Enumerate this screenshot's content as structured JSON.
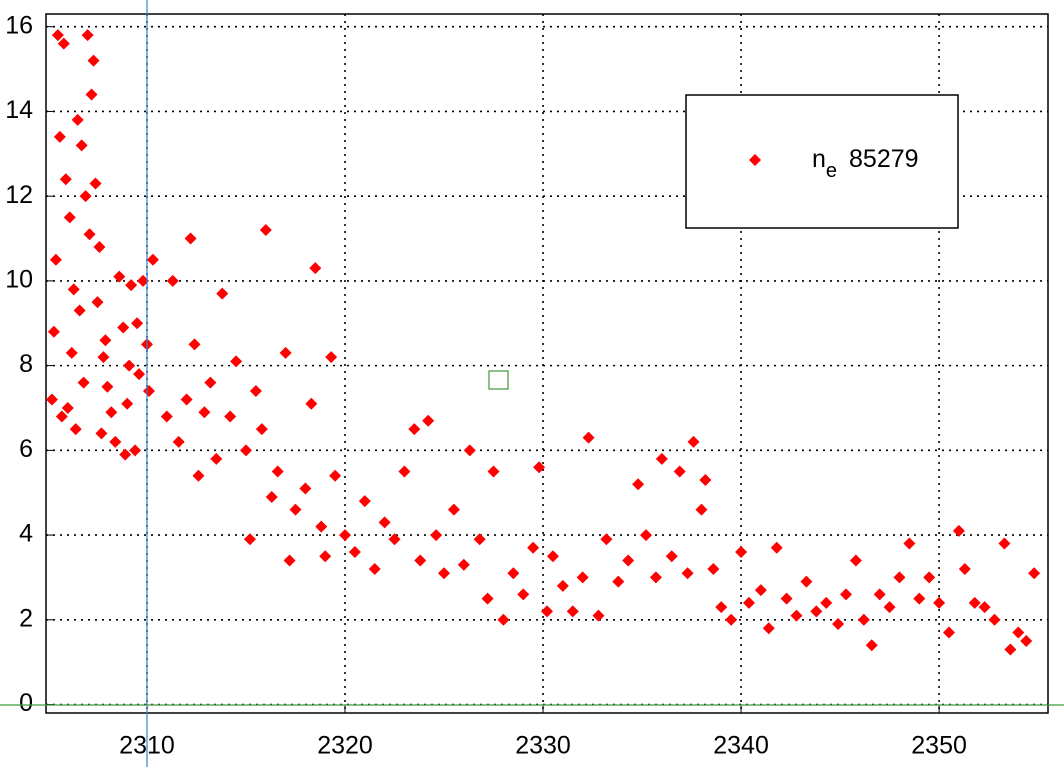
{
  "chart_data": {
    "type": "scatter",
    "series": [
      {
        "name": "n",
        "name_subscript": "e",
        "name_suffix": "85279",
        "color": "#ff0000",
        "x": [
          2305.2,
          2305.4,
          2305.5,
          2305.8,
          2305.6,
          2305.9,
          2306.1,
          2306.3,
          2306.2,
          2305.7,
          2306.5,
          2306.7,
          2306.9,
          2307.0,
          2307.2,
          2307.3,
          2307.1,
          2307.4,
          2307.5,
          2307.6,
          2307.8,
          2308.0,
          2308.2,
          2308.4,
          2308.6,
          2308.8,
          2309.0,
          2309.2,
          2309.4,
          2309.6,
          2309.8,
          2310.1,
          2310.3,
          2306.0,
          2306.4,
          2306.8,
          2307.7,
          2308.9,
          2305.3,
          2306.6,
          2307.9,
          2309.1,
          2309.5,
          2310.0,
          2311.0,
          2311.3,
          2311.6,
          2312.0,
          2312.2,
          2312.4,
          2312.6,
          2312.9,
          2313.2,
          2313.5,
          2313.8,
          2314.2,
          2314.5,
          2315.0,
          2315.2,
          2315.5,
          2315.8,
          2316.0,
          2316.3,
          2316.6,
          2317.0,
          2317.2,
          2317.5,
          2318.0,
          2318.3,
          2318.5,
          2318.8,
          2319.0,
          2319.3,
          2319.5,
          2320.0,
          2320.5,
          2321.0,
          2321.5,
          2322.0,
          2322.5,
          2323.0,
          2323.5,
          2323.8,
          2324.2,
          2324.6,
          2325.0,
          2325.5,
          2326.0,
          2326.3,
          2326.8,
          2327.2,
          2327.5,
          2328.0,
          2328.5,
          2329.0,
          2329.5,
          2329.8,
          2330.2,
          2330.5,
          2331.0,
          2331.5,
          2332.0,
          2332.3,
          2332.8,
          2333.2,
          2333.8,
          2334.3,
          2334.8,
          2335.2,
          2335.7,
          2336.0,
          2336.5,
          2336.9,
          2337.3,
          2337.6,
          2338.0,
          2338.2,
          2338.6,
          2339.0,
          2339.5,
          2340.0,
          2340.4,
          2341.0,
          2341.4,
          2341.8,
          2342.3,
          2342.8,
          2343.3,
          2343.8,
          2344.3,
          2344.9,
          2345.3,
          2345.8,
          2346.2,
          2346.6,
          2347.0,
          2347.5,
          2348.0,
          2348.5,
          2349.0,
          2349.5,
          2350.0,
          2350.5,
          2351.0,
          2351.3,
          2351.8,
          2352.3,
          2352.8,
          2353.3,
          2353.6,
          2354.0,
          2354.4,
          2354.8
        ],
        "values": [
          7.2,
          10.5,
          15.8,
          15.6,
          13.4,
          12.4,
          11.5,
          9.8,
          8.3,
          6.8,
          13.8,
          13.2,
          12.0,
          15.8,
          14.4,
          15.2,
          11.1,
          12.3,
          9.5,
          10.8,
          8.2,
          7.5,
          6.9,
          6.2,
          10.1,
          8.9,
          7.1,
          9.9,
          6.0,
          7.8,
          10.0,
          7.4,
          10.5,
          7.0,
          6.5,
          7.6,
          6.4,
          5.9,
          8.8,
          9.3,
          8.6,
          8.0,
          9.0,
          8.5,
          6.8,
          10.0,
          6.2,
          7.2,
          11.0,
          8.5,
          5.4,
          6.9,
          7.6,
          5.8,
          9.7,
          6.8,
          8.1,
          6.0,
          3.9,
          7.4,
          6.5,
          11.2,
          4.9,
          5.5,
          8.3,
          3.4,
          4.6,
          5.1,
          7.1,
          10.3,
          4.2,
          3.5,
          8.2,
          5.4,
          4.0,
          3.6,
          4.8,
          3.2,
          4.3,
          3.9,
          5.5,
          6.5,
          3.4,
          6.7,
          4.0,
          3.1,
          4.6,
          3.3,
          6.0,
          3.9,
          2.5,
          5.5,
          2.0,
          3.1,
          2.6,
          3.7,
          5.6,
          2.2,
          3.5,
          2.8,
          2.2,
          3.0,
          6.3,
          2.1,
          3.9,
          2.9,
          3.4,
          5.2,
          4.0,
          3.0,
          5.8,
          3.5,
          5.5,
          3.1,
          6.2,
          4.6,
          5.3,
          3.2,
          2.3,
          2.0,
          3.6,
          2.4,
          2.7,
          1.8,
          3.7,
          2.5,
          2.1,
          2.9,
          2.2,
          2.4,
          1.9,
          2.6,
          3.4,
          2.0,
          1.4,
          2.6,
          2.3,
          3.0,
          3.8,
          2.5,
          3.0,
          2.4,
          1.7,
          4.1,
          3.2,
          2.4,
          2.3,
          2.0,
          3.8,
          1.3,
          1.7,
          1.5,
          3.1
        ]
      }
    ],
    "xlim": [
      2304.9,
      2355.5
    ],
    "ylim": [
      -0.2,
      16.3
    ],
    "xticks": [
      2310,
      2320,
      2330,
      2340,
      2350
    ],
    "yticks": [
      0,
      2,
      4,
      6,
      8,
      10,
      12,
      14,
      16
    ],
    "grid": true,
    "legend": "upper right"
  }
}
